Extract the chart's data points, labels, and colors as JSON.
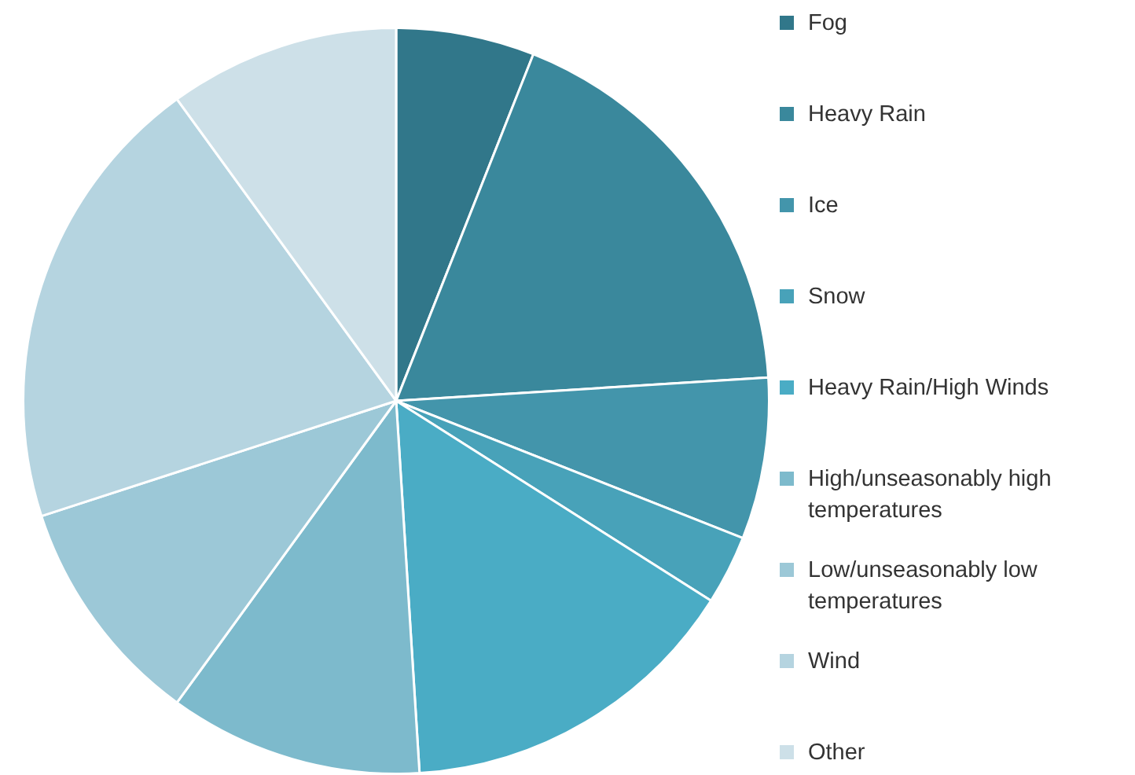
{
  "chart_data": {
    "type": "pie",
    "categories": [
      "Fog",
      "Heavy Rain",
      "Ice",
      "Snow",
      "Heavy Rain/High Winds",
      "High/unseasonably high temperatures",
      "Low/unseasonably low temperatures",
      "Wind",
      "Other"
    ],
    "values": [
      6,
      18,
      7,
      3,
      15,
      11,
      10,
      20,
      10
    ],
    "colors": [
      "#31778a",
      "#3a889c",
      "#4395ab",
      "#48a2b9",
      "#4aacc5",
      "#7dbacc",
      "#9cc8d7",
      "#b5d4e0",
      "#cde0e8"
    ],
    "legend": "right"
  }
}
